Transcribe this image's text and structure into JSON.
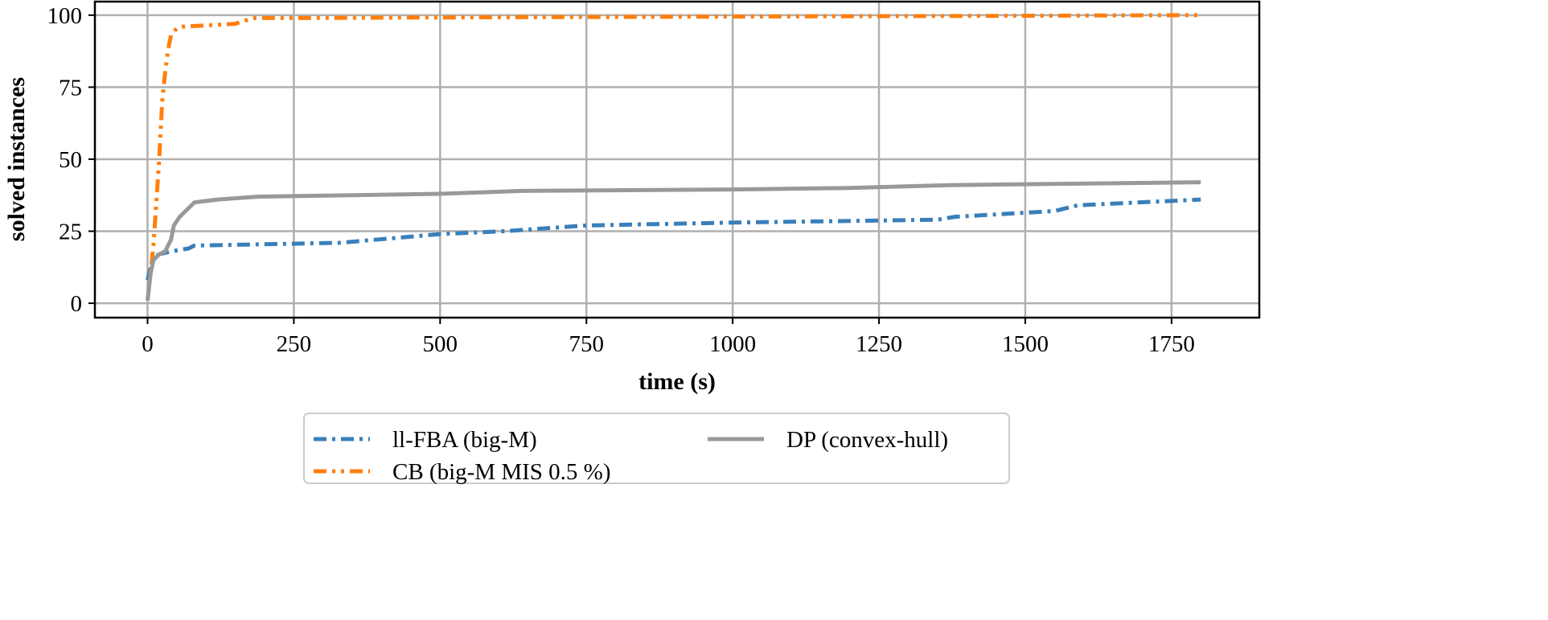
{
  "chart_data": {
    "type": "line",
    "title": "",
    "xlabel": "time (s)",
    "ylabel": "solved instances",
    "xlim": [
      -90,
      1900
    ],
    "ylim": [
      -5,
      104.7
    ],
    "xticks": [
      0,
      250,
      500,
      750,
      1000,
      1250,
      1500,
      1750
    ],
    "yticks": [
      0,
      25,
      50,
      75,
      100
    ],
    "grid": true,
    "legend_position": "bottom-outside",
    "series": [
      {
        "name": "ll-FBA (big-M)",
        "color": "#3a7fba",
        "style": "dashdot",
        "x": [
          0,
          10,
          20,
          40,
          70,
          80,
          330,
          500,
          610,
          750,
          1000,
          1350,
          1380,
          1550,
          1590,
          1800
        ],
        "y": [
          8,
          16,
          17,
          18,
          19,
          20,
          21,
          24,
          25,
          27,
          28,
          29,
          30,
          32,
          34,
          36
        ]
      },
      {
        "name": "CB (big-M MIS 0.5 %)",
        "color": "#ff7f0e",
        "style": "dashdotdot",
        "x": [
          0,
          5,
          10,
          15,
          20,
          25,
          30,
          35,
          40,
          50,
          60,
          150,
          180,
          250,
          500,
          1000,
          1500,
          1800
        ],
        "y": [
          1,
          10,
          20,
          35,
          50,
          70,
          80,
          88,
          93,
          95.5,
          96,
          97,
          99,
          99,
          99.2,
          99.5,
          99.8,
          100
        ]
      },
      {
        "name": "DP (convex-hull)",
        "color": "#999999",
        "style": "solid",
        "x": [
          0,
          5,
          10,
          20,
          30,
          40,
          45,
          55,
          65,
          75,
          80,
          120,
          190,
          500,
          640,
          1000,
          1200,
          1370,
          1800
        ],
        "y": [
          1,
          10,
          15,
          17,
          18,
          22,
          27,
          30,
          32,
          34,
          35,
          36,
          37,
          38,
          39,
          39.5,
          40,
          41,
          42
        ]
      }
    ]
  }
}
